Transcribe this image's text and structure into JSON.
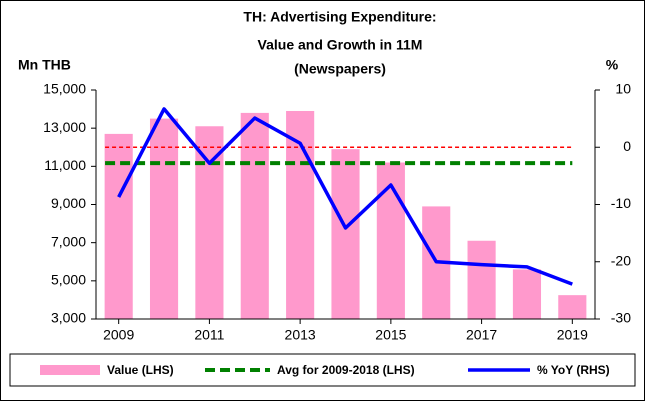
{
  "chart_data": {
    "type": "bar",
    "title": [
      "TH: Advertising Expenditure:",
      "Value and Growth in 11M",
      "(Newspapers)"
    ],
    "y_label": "Mn THB",
    "y2_label": "%",
    "x": [
      2009,
      2010,
      2011,
      2012,
      2013,
      2014,
      2015,
      2016,
      2017,
      2018,
      2019
    ],
    "xlim": [
      2008.5,
      2019.5
    ],
    "xticks": [
      2009,
      2011,
      2013,
      2015,
      2017,
      2019
    ],
    "ylim": [
      3000,
      15000
    ],
    "yticks": [
      {
        "value": 3000,
        "label": "3,000"
      },
      {
        "value": 5000,
        "label": "5,000"
      },
      {
        "value": 7000,
        "label": "7,000"
      },
      {
        "value": 9000,
        "label": "9,000"
      },
      {
        "value": 11000,
        "label": "11,000"
      },
      {
        "value": 13000,
        "label": "13,000"
      },
      {
        "value": 15000,
        "label": "15,000"
      }
    ],
    "y2lim": [
      -30,
      10
    ],
    "y2ticks": [
      -30,
      -20,
      -10,
      0,
      10
    ],
    "series": [
      {
        "name": "Value (LHS)",
        "type": "bar",
        "color": "#ff99cc",
        "values": [
          12700,
          13500,
          13100,
          13800,
          13900,
          11900,
          11200,
          8900,
          7100,
          5600,
          4250
        ]
      },
      {
        "name": "Avg for 2009-2018 (LHS)",
        "type": "hline",
        "color": "#008000",
        "value": 11170
      },
      {
        "name": "% YoY (RHS)",
        "type": "line",
        "axis": "y2",
        "color": "#0000ff",
        "values": [
          -8.7,
          6.7,
          -2.8,
          5.1,
          0.7,
          -14.1,
          -6.6,
          -20,
          -20.5,
          -20.9,
          -23.9
        ]
      }
    ],
    "reference_line": {
      "value": 0,
      "axis": "y2",
      "color": "#ff0000"
    },
    "legend": "bottom"
  }
}
